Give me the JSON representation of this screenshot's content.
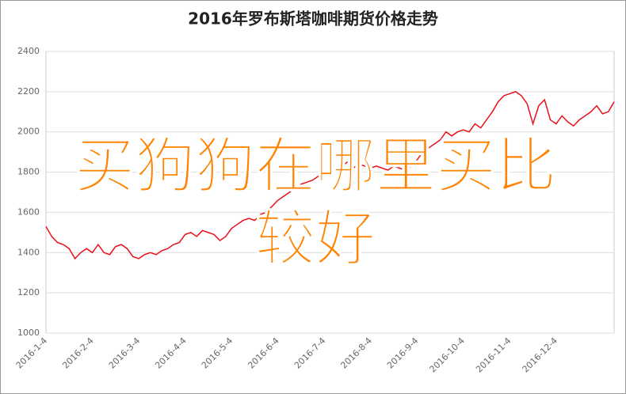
{
  "chart_data": {
    "type": "line",
    "title": "2016年罗布斯塔咖啡期货价格走势",
    "categories": [
      "2016-1-4",
      null,
      null,
      null,
      null,
      null,
      null,
      null,
      "2016-2-4",
      null,
      null,
      null,
      null,
      null,
      null,
      null,
      "2016-3-4",
      null,
      null,
      null,
      null,
      null,
      null,
      null,
      "2016-4-4",
      null,
      null,
      null,
      null,
      null,
      null,
      null,
      "2016-5-4",
      null,
      null,
      null,
      null,
      null,
      null,
      null,
      "2016-6-4",
      null,
      null,
      null,
      null,
      null,
      null,
      null,
      "2016-7-4",
      null,
      null,
      null,
      null,
      null,
      null,
      null,
      "2016-8-4",
      null,
      null,
      null,
      null,
      null,
      null,
      null,
      "2016-9-4",
      null,
      null,
      null,
      null,
      null,
      null,
      null,
      "2016-10-4",
      null,
      null,
      null,
      null,
      null,
      null,
      null,
      "2016-11-4",
      null,
      null,
      null,
      null,
      null,
      null,
      null,
      "2016-12-4",
      null,
      null,
      null,
      null,
      null,
      null,
      null,
      null,
      null,
      null
    ],
    "series": [
      {
        "color": "#e8101a",
        "values": [
          1530,
          1480,
          1450,
          1440,
          1420,
          1370,
          1400,
          1420,
          1400,
          1440,
          1400,
          1390,
          1430,
          1440,
          1420,
          1380,
          1370,
          1390,
          1400,
          1390,
          1410,
          1420,
          1440,
          1450,
          1490,
          1500,
          1480,
          1510,
          1500,
          1490,
          1460,
          1480,
          1520,
          1540,
          1560,
          1570,
          1560,
          1590,
          1600,
          1630,
          1660,
          1680,
          1700,
          1720,
          1740,
          1750,
          1760,
          1780,
          1800,
          1790,
          1810,
          1830,
          1850,
          1820,
          1840,
          1830,
          1820,
          1830,
          1820,
          1810,
          1830,
          1820,
          1810,
          1830,
          1860,
          1900,
          1920,
          1940,
          1960,
          2000,
          1980,
          2000,
          2010,
          2000,
          2040,
          2020,
          2060,
          2100,
          2150,
          2180,
          2190,
          2200,
          2180,
          2140,
          2040,
          2130,
          2160,
          2060,
          2040,
          2080,
          2050,
          2030,
          2060,
          2080,
          2100,
          2130,
          2090,
          2100,
          2150
        ]
      }
    ],
    "ylim": [
      1000,
      2400
    ],
    "yticks": [
      1000,
      1200,
      1400,
      1600,
      1800,
      2000,
      2200,
      2400
    ],
    "grid": true,
    "annotations": [
      "买狗狗在哪里买比",
      "较好"
    ]
  }
}
